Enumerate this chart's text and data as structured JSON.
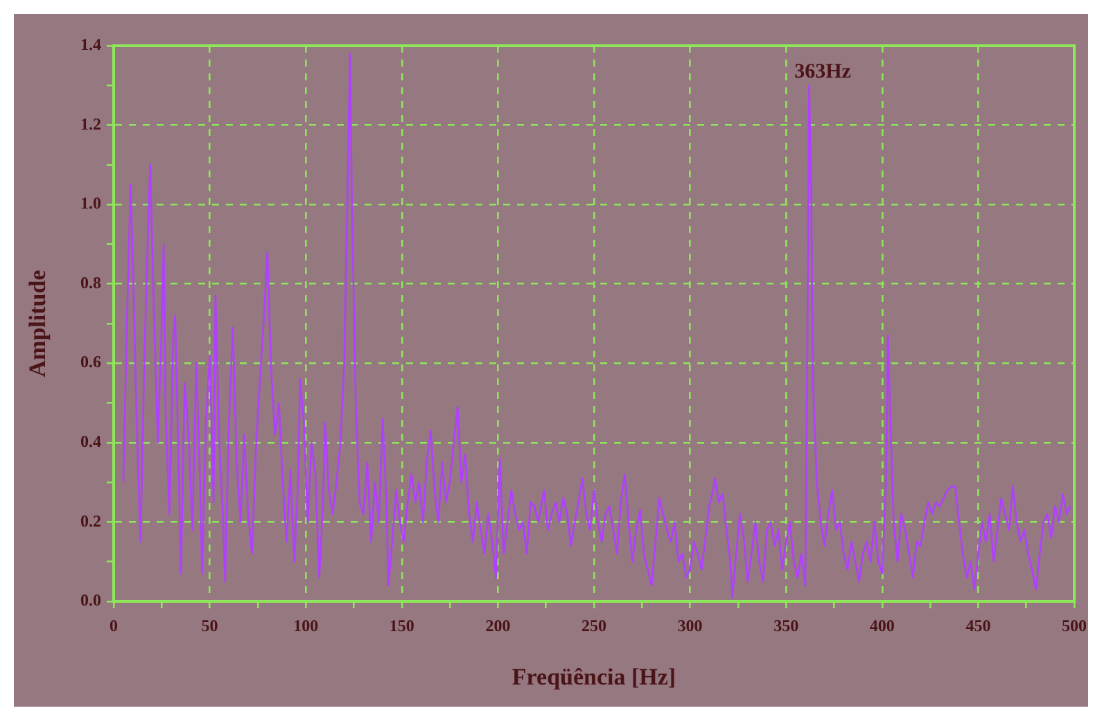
{
  "chart_data": {
    "type": "line",
    "xlabel": "Freqüência [Hz]",
    "ylabel": "Amplitude",
    "xlim": [
      0,
      500
    ],
    "xticks": [
      0,
      {
        "value": 25,
        "label": null
      },
      50,
      {
        "value": 75,
        "label": null
      },
      100,
      {
        "value": 125,
        "label": null
      },
      150,
      {
        "value": 175,
        "label": null
      },
      200,
      {
        "value": 225,
        "label": null
      },
      250,
      {
        "value": 275,
        "label": null
      },
      300,
      {
        "value": 325,
        "label": null
      },
      350,
      {
        "value": 375,
        "label": null
      },
      400,
      {
        "value": 425,
        "label": null
      },
      450,
      {
        "value": 475,
        "label": null
      },
      500
    ],
    "ylim": [
      0,
      1.4
    ],
    "yticks": [
      {
        "value": 0,
        "label": "0.0"
      },
      {
        "value": 0.1,
        "label": null
      },
      {
        "value": 0.2,
        "label": "0.2"
      },
      {
        "value": 0.3,
        "label": null
      },
      {
        "value": 0.4,
        "label": "0.4"
      },
      {
        "value": 0.5,
        "label": null
      },
      {
        "value": 0.6,
        "label": "0.6"
      },
      {
        "value": 0.7,
        "label": null
      },
      {
        "value": 0.8,
        "label": "0.8"
      },
      {
        "value": 0.9,
        "label": null
      },
      {
        "value": 1.0,
        "label": "1.0"
      },
      {
        "value": 1.1,
        "label": null
      },
      {
        "value": 1.2,
        "label": "1.2"
      },
      {
        "value": 1.3,
        "label": null
      },
      {
        "value": 1.4,
        "label": "1.4"
      }
    ],
    "grid": true,
    "legend": false,
    "marker": "none",
    "line_style": "solid",
    "annotations": [
      {
        "text": "363Hz",
        "x": 363,
        "y": 1.3
      }
    ],
    "series": [
      {
        "color": "#b040ff",
        "x": [
          5,
          7,
          8.8,
          10,
          12,
          14,
          16,
          18,
          19,
          21,
          23,
          25,
          26,
          27,
          29,
          31,
          32,
          34,
          35,
          37,
          39,
          41,
          43,
          45,
          46,
          48,
          50,
          52,
          53,
          55,
          57,
          58,
          60,
          62,
          64,
          66,
          68,
          70,
          72,
          74,
          76,
          78,
          80,
          82,
          84,
          86,
          88,
          90,
          92,
          94,
          96,
          97,
          99,
          101,
          103,
          105,
          107,
          109,
          110,
          112,
          114,
          116,
          118,
          120,
          122,
          123,
          124,
          126,
          128,
          130,
          132,
          134,
          136,
          138,
          140,
          142,
          143,
          145,
          147,
          149,
          151,
          153,
          155,
          157,
          159,
          161,
          163,
          165,
          167,
          169,
          171,
          173,
          175,
          177,
          179,
          181,
          183,
          185,
          187,
          189,
          191,
          193,
          195,
          197,
          199,
          201,
          203,
          205,
          207,
          209,
          211,
          213,
          215,
          217,
          219,
          221,
          224,
          226,
          228,
          230,
          232,
          234,
          236,
          238,
          240,
          242,
          244,
          246,
          248,
          250,
          252,
          254,
          256,
          258,
          260,
          262,
          264,
          266,
          268,
          270,
          272,
          274,
          276,
          278,
          280,
          282,
          284,
          286,
          288,
          290,
          292,
          294,
          296,
          298,
          300,
          302,
          304,
          306,
          308,
          310,
          312,
          313,
          315,
          317,
          319,
          321,
          322,
          324,
          326,
          328,
          330,
          332,
          334,
          336,
          338,
          340,
          342,
          344,
          346,
          348,
          350,
          352,
          354,
          356,
          358,
          360,
          361,
          362,
          363,
          364,
          366,
          368,
          370,
          372,
          374,
          376,
          378,
          380,
          382,
          384,
          386,
          388,
          390,
          392,
          394,
          396,
          398,
          400,
          402,
          403,
          404,
          406,
          408,
          410,
          412,
          414,
          416,
          418,
          420,
          422,
          424,
          426,
          428,
          430,
          432,
          434,
          436,
          438,
          440,
          442,
          444,
          446,
          448,
          450,
          452,
          454,
          456,
          458,
          460,
          462,
          464,
          466,
          468,
          470,
          472,
          474,
          476,
          478,
          480,
          482,
          484,
          486,
          488,
          490,
          492,
          494,
          496,
          498
        ],
        "values": [
          0.3,
          0.72,
          1.05,
          0.85,
          0.45,
          0.15,
          0.62,
          0.95,
          1.1,
          0.72,
          0.4,
          0.7,
          0.9,
          0.48,
          0.22,
          0.66,
          0.72,
          0.3,
          0.07,
          0.55,
          0.42,
          0.18,
          0.6,
          0.3,
          0.07,
          0.45,
          0.62,
          0.25,
          0.77,
          0.4,
          0.2,
          0.05,
          0.45,
          0.69,
          0.35,
          0.2,
          0.42,
          0.22,
          0.12,
          0.38,
          0.55,
          0.7,
          0.88,
          0.58,
          0.42,
          0.5,
          0.3,
          0.15,
          0.33,
          0.1,
          0.3,
          0.56,
          0.45,
          0.2,
          0.4,
          0.32,
          0.06,
          0.25,
          0.45,
          0.28,
          0.22,
          0.3,
          0.4,
          0.6,
          1.1,
          1.38,
          1.0,
          0.5,
          0.25,
          0.22,
          0.35,
          0.15,
          0.3,
          0.2,
          0.46,
          0.25,
          0.04,
          0.15,
          0.28,
          0.2,
          0.15,
          0.25,
          0.32,
          0.25,
          0.3,
          0.2,
          0.35,
          0.43,
          0.28,
          0.2,
          0.35,
          0.25,
          0.3,
          0.4,
          0.49,
          0.3,
          0.37,
          0.22,
          0.15,
          0.25,
          0.18,
          0.12,
          0.22,
          0.15,
          0.06,
          0.36,
          0.12,
          0.2,
          0.28,
          0.22,
          0.18,
          0.2,
          0.12,
          0.25,
          0.24,
          0.2,
          0.28,
          0.18,
          0.22,
          0.25,
          0.2,
          0.26,
          0.22,
          0.14,
          0.2,
          0.25,
          0.31,
          0.22,
          0.18,
          0.28,
          0.2,
          0.15,
          0.22,
          0.24,
          0.18,
          0.12,
          0.25,
          0.32,
          0.2,
          0.1,
          0.18,
          0.23,
          0.12,
          0.08,
          0.04,
          0.15,
          0.26,
          0.22,
          0.18,
          0.15,
          0.2,
          0.1,
          0.12,
          0.06,
          0.08,
          0.15,
          0.12,
          0.08,
          0.16,
          0.24,
          0.28,
          0.31,
          0.25,
          0.27,
          0.18,
          0.1,
          0.01,
          0.12,
          0.22,
          0.16,
          0.05,
          0.12,
          0.2,
          0.1,
          0.05,
          0.18,
          0.2,
          0.14,
          0.18,
          0.08,
          0.15,
          0.2,
          0.1,
          0.06,
          0.12,
          0.04,
          0.6,
          1.3,
          1.07,
          0.55,
          0.3,
          0.2,
          0.14,
          0.22,
          0.28,
          0.18,
          0.2,
          0.12,
          0.08,
          0.15,
          0.1,
          0.05,
          0.12,
          0.15,
          0.1,
          0.2,
          0.1,
          0.07,
          0.3,
          0.67,
          0.5,
          0.2,
          0.1,
          0.22,
          0.18,
          0.12,
          0.06,
          0.15,
          0.14,
          0.2,
          0.25,
          0.22,
          0.25,
          0.24,
          0.26,
          0.28,
          0.29,
          0.29,
          0.2,
          0.12,
          0.06,
          0.1,
          0.03,
          0.12,
          0.2,
          0.15,
          0.22,
          0.1,
          0.18,
          0.26,
          0.22,
          0.18,
          0.29,
          0.2,
          0.15,
          0.18,
          0.12,
          0.08,
          0.03,
          0.12,
          0.2,
          0.22,
          0.16,
          0.24,
          0.2,
          0.27,
          0.22,
          0.24
        ]
      }
    ]
  }
}
